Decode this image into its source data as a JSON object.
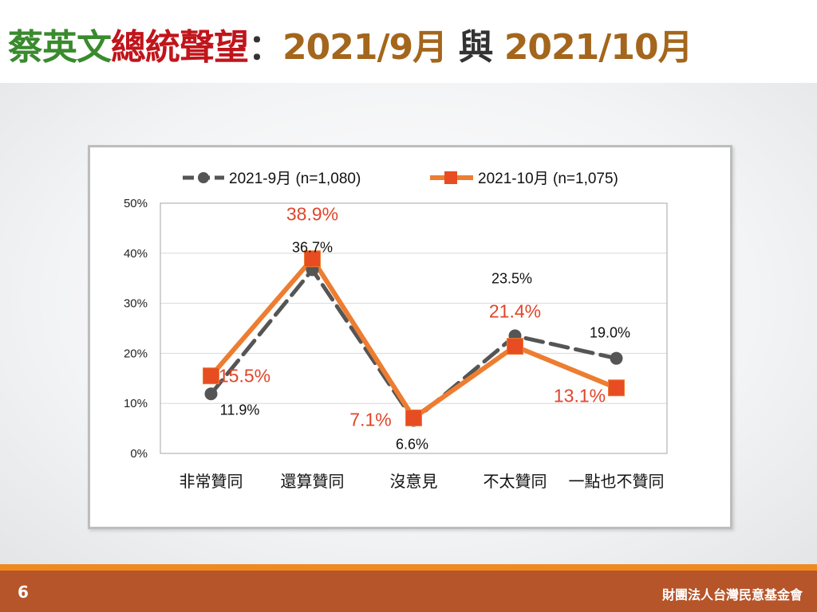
{
  "title": {
    "part1": "蔡英文",
    "part2": "總統聲望",
    "sep": "：",
    "part3": "2021/9月",
    "part4": "與",
    "part5": "2021/10月"
  },
  "footer": {
    "page_number": "6",
    "organization": "財團法人台灣民意基金會"
  },
  "colors": {
    "series_sep": "#555555",
    "series_oct": "#ed7d31",
    "label_oct": "#e0452a",
    "footer": "#b6552a"
  },
  "chart_data": {
    "type": "line",
    "categories": [
      "非常贊同",
      "還算贊同",
      "沒意見",
      "不太贊同",
      "一點也不贊同"
    ],
    "series": [
      {
        "name": "2021-9月  (n=1,080)",
        "values": [
          11.9,
          36.7,
          6.6,
          23.5,
          19.0
        ],
        "labels": [
          "11.9%",
          "36.7%",
          "6.6%",
          "23.5%",
          "19.0%"
        ],
        "style": "dashed-circle"
      },
      {
        "name": "2021-10月  (n=1,075)",
        "values": [
          15.5,
          38.9,
          7.1,
          21.4,
          13.1
        ],
        "labels": [
          "15.5%",
          "38.9%",
          "7.1%",
          "21.4%",
          "13.1%"
        ],
        "style": "solid-square"
      }
    ],
    "y_ticks": [
      "0%",
      "10%",
      "20%",
      "30%",
      "40%",
      "50%"
    ],
    "ylim": [
      0,
      50
    ],
    "grid": true,
    "legend": "top"
  }
}
